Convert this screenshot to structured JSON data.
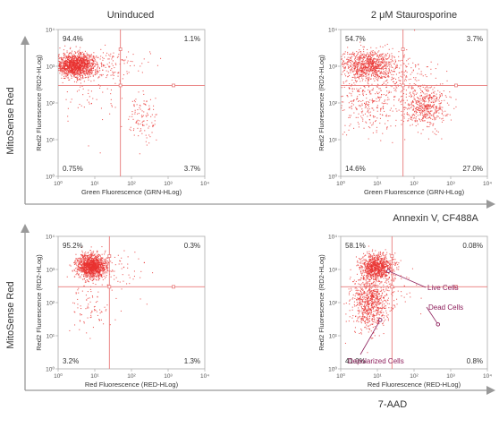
{
  "figure": {
    "columns": [
      "Uninduced",
      "2 μM Staurosporine"
    ],
    "row_axis_labels": [
      {
        "y": "MitoSense Red",
        "x": "Annexin V, CF488A"
      },
      {
        "y": "MitoSense Red",
        "x": "7-AAD"
      }
    ]
  },
  "colors": {
    "dots": "#e8312f",
    "gate": "#e87a7a",
    "axis": "#999999",
    "frame": "#aaaaaa",
    "text": "#333333",
    "annotation": "#8c1d5a"
  },
  "chart_data": [
    {
      "type": "scatter",
      "title": "Uninduced",
      "xlabel": "Green Fluorescence (GRN-HLog)",
      "ylabel": "Red2 Fluorescence (RD2-HLog)",
      "xscale": "log",
      "yscale": "log",
      "xlim": [
        1,
        10000
      ],
      "ylim": [
        1,
        10000
      ],
      "x_ticks": [
        "10⁰",
        "10¹",
        "10²",
        "10³",
        "10⁴"
      ],
      "y_ticks": [
        "10⁰",
        "10¹",
        "10²",
        "10³",
        "10⁴"
      ],
      "gate": {
        "x": 50,
        "y": 300
      },
      "quadrant_labels": [
        {
          "pos": "top-left",
          "text": "94.4%"
        },
        {
          "pos": "top-right",
          "text": "1.1%"
        },
        {
          "pos": "bottom-left",
          "text": "0.75%"
        },
        {
          "pos": "bottom-right",
          "text": "3.7%"
        }
      ],
      "clusters": [
        {
          "cx": 3,
          "cy": 1100,
          "sx": 0.28,
          "sy": 0.16,
          "n": 1400
        },
        {
          "cx": 200,
          "cy": 40,
          "sx": 0.22,
          "sy": 0.3,
          "n": 110
        },
        {
          "cx": 30,
          "cy": 1000,
          "sx": 0.5,
          "sy": 0.25,
          "n": 120
        },
        {
          "cx": 8,
          "cy": 150,
          "sx": 0.4,
          "sy": 0.5,
          "n": 50
        }
      ],
      "annotations": []
    },
    {
      "type": "scatter",
      "title": "2 μM Staurosporine",
      "xlabel": "Green Fluorescence (GRN-HLog)",
      "ylabel": "Red2 Fluorescence (RD2-HLog)",
      "xscale": "log",
      "yscale": "log",
      "xlim": [
        1,
        10000
      ],
      "ylim": [
        1,
        10000
      ],
      "x_ticks": [
        "10⁰",
        "10¹",
        "10²",
        "10³",
        "10⁴"
      ],
      "y_ticks": [
        "10⁰",
        "10¹",
        "10²",
        "10³",
        "10⁴"
      ],
      "gate": {
        "x": 50,
        "y": 300
      },
      "quadrant_labels": [
        {
          "pos": "top-left",
          "text": "54.7%"
        },
        {
          "pos": "top-right",
          "text": "3.7%"
        },
        {
          "pos": "bottom-left",
          "text": "14.6%"
        },
        {
          "pos": "bottom-right",
          "text": "27.0%"
        }
      ],
      "clusters": [
        {
          "cx": 5,
          "cy": 1100,
          "sx": 0.4,
          "sy": 0.2,
          "n": 900
        },
        {
          "cx": 200,
          "cy": 80,
          "sx": 0.3,
          "sy": 0.28,
          "n": 500
        },
        {
          "cx": 5,
          "cy": 120,
          "sx": 0.45,
          "sy": 0.45,
          "n": 350
        },
        {
          "cx": 50,
          "cy": 600,
          "sx": 0.4,
          "sy": 0.3,
          "n": 150
        }
      ],
      "annotations": []
    },
    {
      "type": "scatter",
      "title": "",
      "xlabel": "Red Fluorescence (RED-HLog)",
      "ylabel": "Red2 Fluorescence (RD2-HLog)",
      "xscale": "log",
      "yscale": "log",
      "xlim": [
        1,
        10000
      ],
      "ylim": [
        1,
        10000
      ],
      "x_ticks": [
        "10⁰",
        "10¹",
        "10²",
        "10³",
        "10⁴"
      ],
      "y_ticks": [
        "10⁰",
        "10¹",
        "10²",
        "10³",
        "10⁴"
      ],
      "gate": {
        "x": 25,
        "y": 300
      },
      "quadrant_labels": [
        {
          "pos": "top-left",
          "text": "95.2%"
        },
        {
          "pos": "top-right",
          "text": "0.3%"
        },
        {
          "pos": "bottom-left",
          "text": "3.2%"
        },
        {
          "pos": "bottom-right",
          "text": "1.3%"
        }
      ],
      "clusters": [
        {
          "cx": 8,
          "cy": 1300,
          "sx": 0.2,
          "sy": 0.18,
          "n": 1300
        },
        {
          "cx": 8,
          "cy": 60,
          "sx": 0.3,
          "sy": 0.4,
          "n": 80
        },
        {
          "cx": 40,
          "cy": 800,
          "sx": 0.5,
          "sy": 0.4,
          "n": 60
        }
      ],
      "annotations": []
    },
    {
      "type": "scatter",
      "title": "",
      "xlabel": "Red Fluorescence (RED-HLog)",
      "ylabel": "Red2 Fluorescence (RD2-HLog)",
      "xscale": "log",
      "yscale": "log",
      "xlim": [
        1,
        10000
      ],
      "ylim": [
        1,
        10000
      ],
      "x_ticks": [
        "10⁰",
        "10¹",
        "10²",
        "10³",
        "10⁴"
      ],
      "y_ticks": [
        "10⁰",
        "10¹",
        "10²",
        "10³",
        "10⁴"
      ],
      "gate": {
        "x": 25,
        "y": 300
      },
      "quadrant_labels": [
        {
          "pos": "top-left",
          "text": "58.1%"
        },
        {
          "pos": "top-right",
          "text": "0.08%"
        },
        {
          "pos": "bottom-left",
          "text": "41.0%"
        },
        {
          "pos": "bottom-right",
          "text": "0.8%"
        }
      ],
      "clusters": [
        {
          "cx": 9,
          "cy": 1200,
          "sx": 0.22,
          "sy": 0.2,
          "n": 900
        },
        {
          "cx": 6,
          "cy": 100,
          "sx": 0.25,
          "sy": 0.4,
          "n": 750
        },
        {
          "cx": 20,
          "cy": 400,
          "sx": 0.3,
          "sy": 0.4,
          "n": 100
        }
      ],
      "annotations": [
        {
          "text": "Live Cells",
          "point_x": 20,
          "point_y": 900
        },
        {
          "text": "Dead Cells",
          "point_x": 450,
          "point_y": 22
        },
        {
          "text": "Depolarized Cells",
          "point_x": 12,
          "point_y": 30
        }
      ]
    }
  ]
}
